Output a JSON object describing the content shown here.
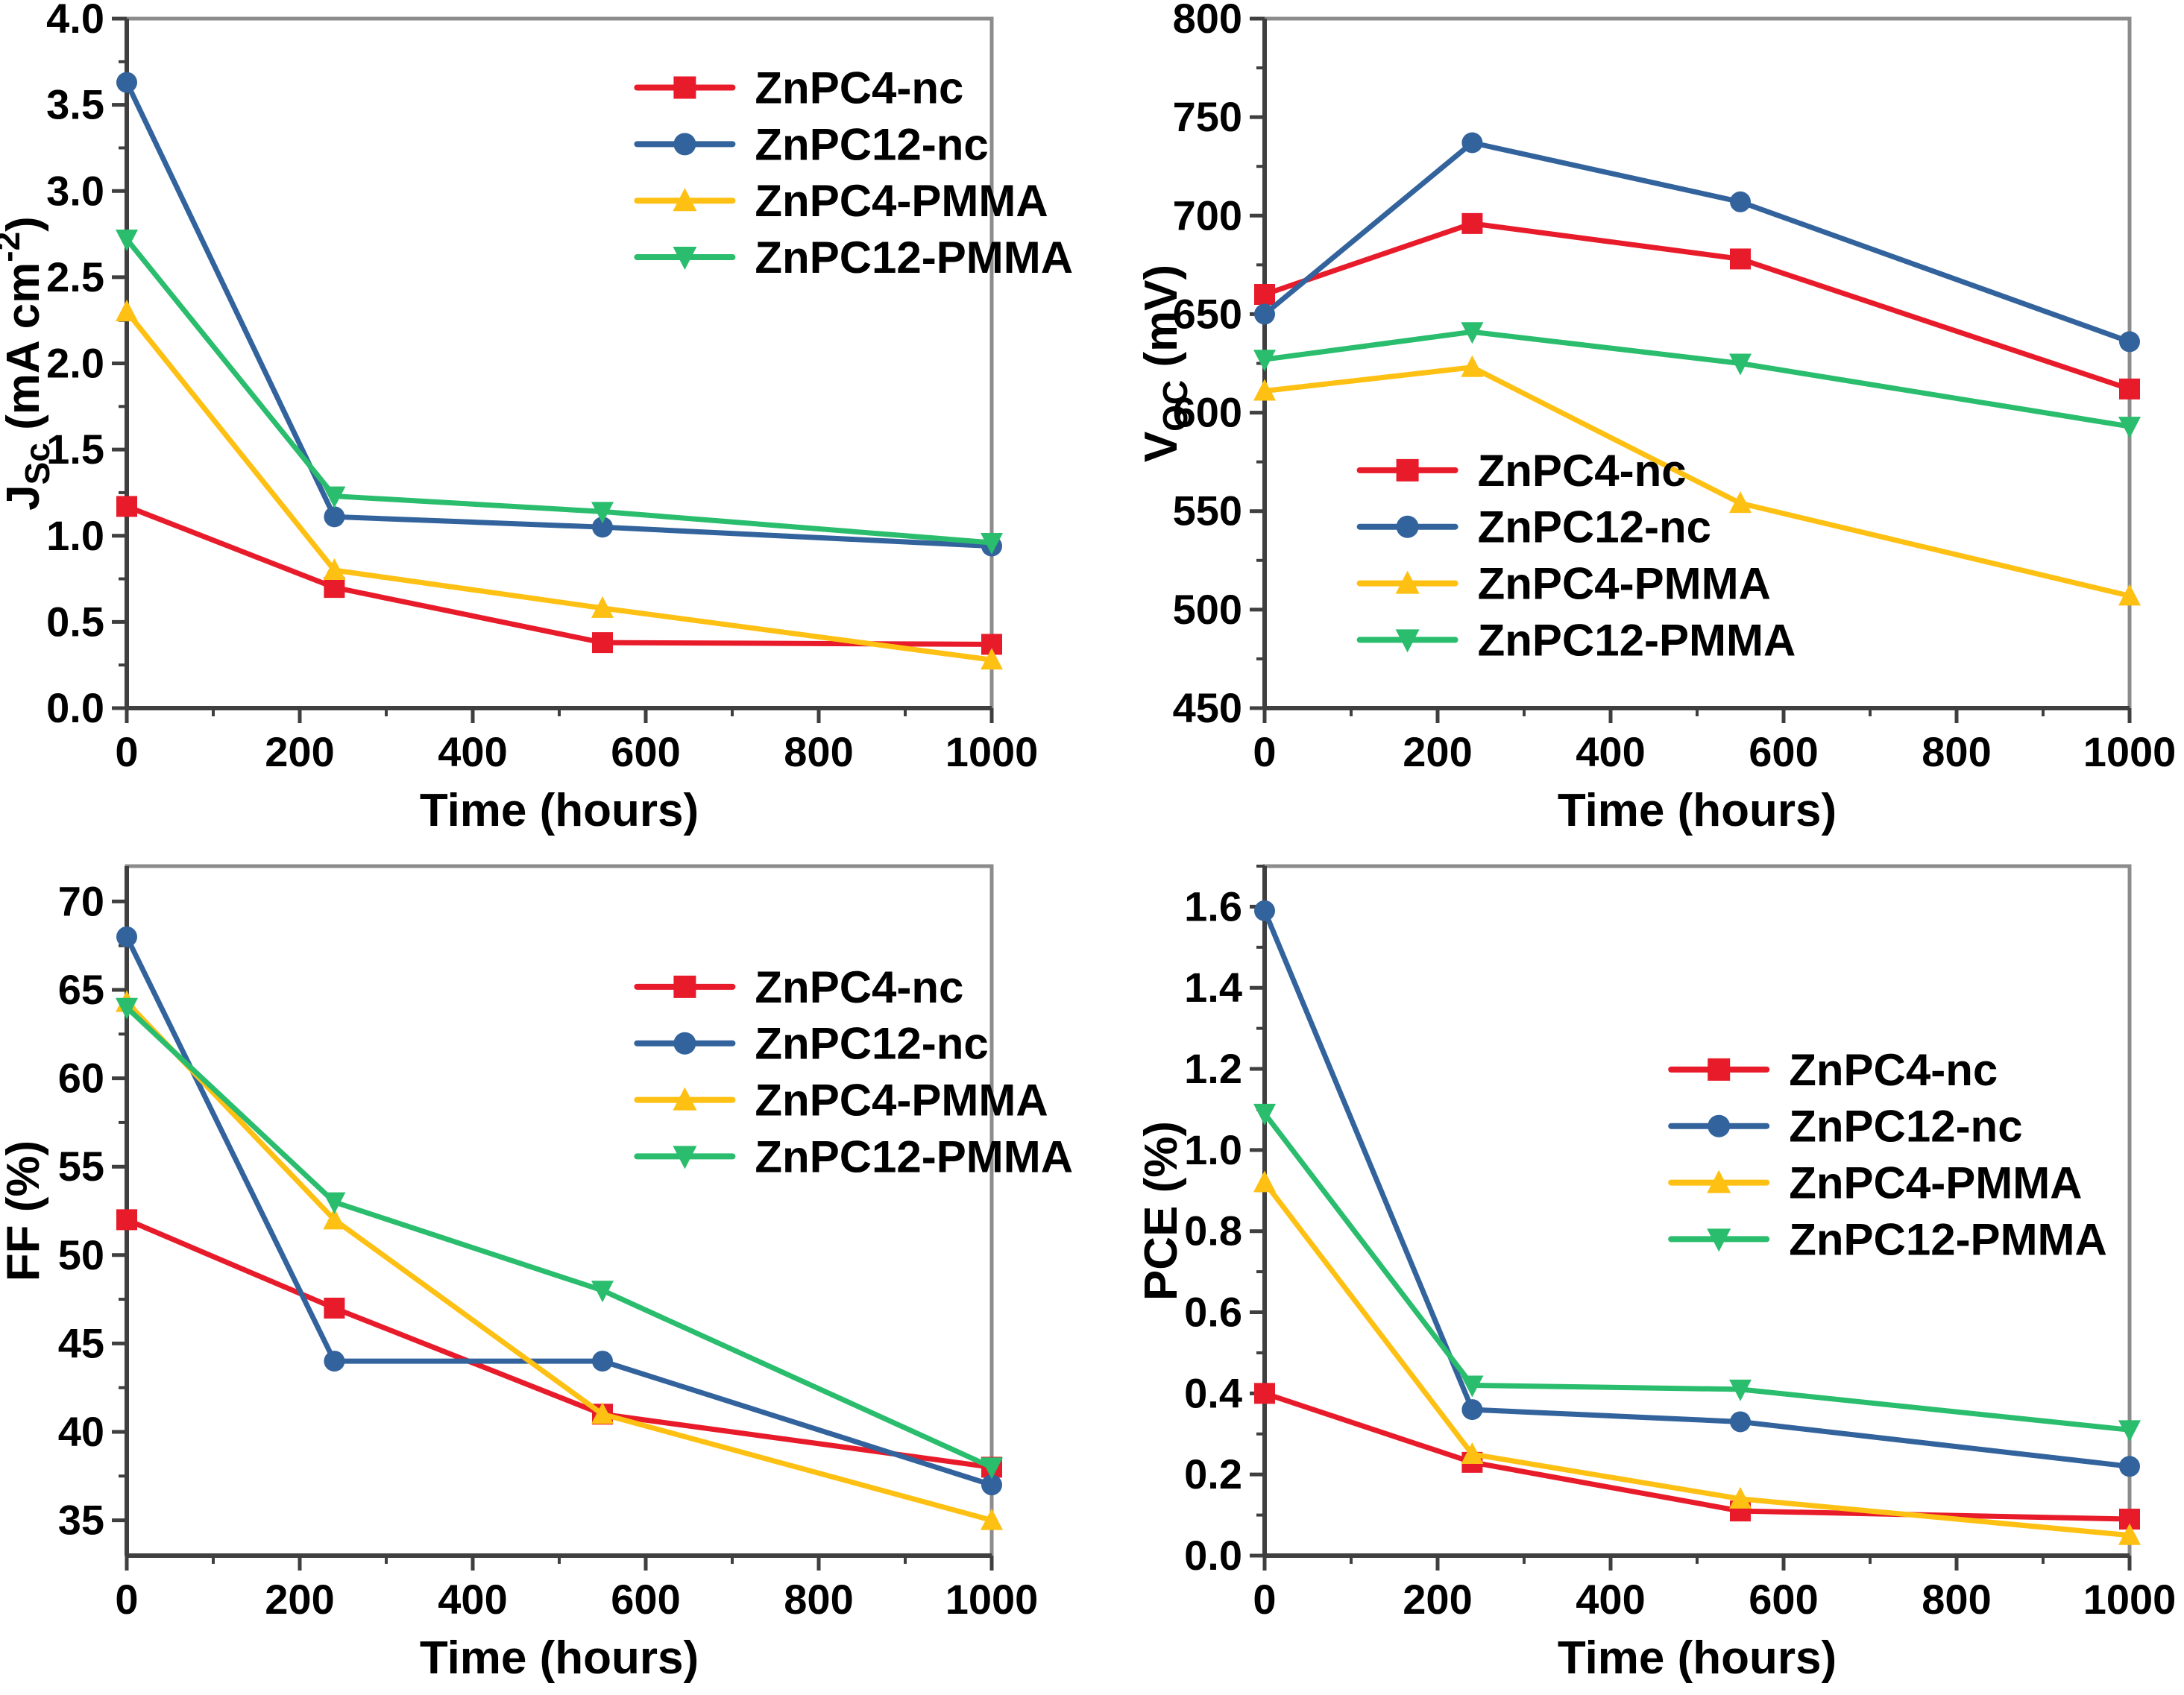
{
  "figure": {
    "background": "#ffffff"
  },
  "colors": {
    "red": "#e81b2b",
    "blue": "#33639c",
    "yellow": "#fdc013",
    "green": "#2abd6d",
    "frame": "#8c8c8c",
    "axis": "#3f3f3f",
    "text": "#000000"
  },
  "legend_labels": [
    "ZnPC4-nc",
    "ZnPC12-nc",
    "ZnPC4-PMMA",
    "ZnPC12-PMMA"
  ],
  "chart_data": [
    {
      "id": "jsc",
      "type": "line",
      "xlabel": "Time (hours)",
      "x": [
        0,
        240,
        550,
        1000
      ],
      "xlim": [
        0,
        1000
      ],
      "xticks": [
        {
          "v": 0,
          "label": "0"
        },
        {
          "v": 200,
          "label": "200"
        },
        {
          "v": 400,
          "label": "400"
        },
        {
          "v": 600,
          "label": "600"
        },
        {
          "v": 800,
          "label": "800"
        },
        {
          "v": 1000,
          "label": "1000"
        }
      ],
      "x_minor_step": 100,
      "ylim": [
        0,
        4
      ],
      "yticks": [
        {
          "v": 0,
          "label": "0.0"
        },
        {
          "v": 0.5,
          "label": "0.5"
        },
        {
          "v": 1,
          "label": "1.0"
        },
        {
          "v": 1.5,
          "label": "1.5"
        },
        {
          "v": 2,
          "label": "2.0"
        },
        {
          "v": 2.5,
          "label": "2.5"
        },
        {
          "v": 3,
          "label": "3.0"
        },
        {
          "v": 3.5,
          "label": "3.5"
        },
        {
          "v": 4,
          "label": "4.0"
        }
      ],
      "y_minor_step": 0.25,
      "ylabel_parts": [
        {
          "t": "J"
        },
        {
          "t": "Sc",
          "sub": true
        },
        {
          "t": " (mA cm"
        },
        {
          "t": "-2",
          "sup": true
        },
        {
          "t": ")"
        }
      ],
      "legend": {
        "x": 0.59,
        "y": 0.1,
        "dy": 0.082
      },
      "series": [
        {
          "name": "ZnPC4-nc",
          "color_key": "red",
          "marker": "square",
          "values": [
            1.17,
            0.7,
            0.38,
            0.37
          ]
        },
        {
          "name": "ZnPC12-nc",
          "color_key": "blue",
          "marker": "circle",
          "values": [
            3.63,
            1.11,
            1.05,
            0.94
          ]
        },
        {
          "name": "ZnPC4-PMMA",
          "color_key": "yellow",
          "marker": "tri-up",
          "values": [
            2.3,
            0.8,
            0.58,
            0.28
          ]
        },
        {
          "name": "ZnPC12-PMMA",
          "color_key": "green",
          "marker": "tri-down",
          "values": [
            2.72,
            1.23,
            1.14,
            0.96
          ]
        }
      ]
    },
    {
      "id": "voc",
      "type": "line",
      "xlabel": "Time (hours)",
      "x": [
        0,
        240,
        550,
        1000
      ],
      "xlim": [
        0,
        1000
      ],
      "xticks": [
        {
          "v": 0,
          "label": "0"
        },
        {
          "v": 200,
          "label": "200"
        },
        {
          "v": 400,
          "label": "400"
        },
        {
          "v": 600,
          "label": "600"
        },
        {
          "v": 800,
          "label": "800"
        },
        {
          "v": 1000,
          "label": "1000"
        }
      ],
      "x_minor_step": 100,
      "ylim": [
        450,
        800
      ],
      "yticks": [
        {
          "v": 450,
          "label": "450"
        },
        {
          "v": 500,
          "label": "500"
        },
        {
          "v": 550,
          "label": "550"
        },
        {
          "v": 600,
          "label": "600"
        },
        {
          "v": 650,
          "label": "650"
        },
        {
          "v": 700,
          "label": "700"
        },
        {
          "v": 750,
          "label": "750"
        },
        {
          "v": 800,
          "label": "800"
        }
      ],
      "y_minor_step": 25,
      "ylabel_parts": [
        {
          "t": "V"
        },
        {
          "t": "OC",
          "sub": true
        },
        {
          "t": " (mV)"
        }
      ],
      "legend": {
        "x": 0.11,
        "y": 0.655,
        "dy": 0.082
      },
      "series": [
        {
          "name": "ZnPC4-nc",
          "color_key": "red",
          "marker": "square",
          "values": [
            660,
            696,
            678,
            612
          ]
        },
        {
          "name": "ZnPC12-nc",
          "color_key": "blue",
          "marker": "circle",
          "values": [
            650,
            737,
            707,
            636
          ]
        },
        {
          "name": "ZnPC4-PMMA",
          "color_key": "yellow",
          "marker": "tri-up",
          "values": [
            611,
            623,
            554,
            507
          ]
        },
        {
          "name": "ZnPC12-PMMA",
          "color_key": "green",
          "marker": "tri-down",
          "values": [
            627,
            641,
            625,
            593
          ]
        }
      ]
    },
    {
      "id": "ff",
      "type": "line",
      "xlabel": "Time (hours)",
      "x": [
        0,
        240,
        550,
        1000
      ],
      "xlim": [
        0,
        1000
      ],
      "xticks": [
        {
          "v": 0,
          "label": "0"
        },
        {
          "v": 200,
          "label": "200"
        },
        {
          "v": 400,
          "label": "400"
        },
        {
          "v": 600,
          "label": "600"
        },
        {
          "v": 800,
          "label": "800"
        },
        {
          "v": 1000,
          "label": "1000"
        }
      ],
      "x_minor_step": 100,
      "ylim": [
        33,
        72
      ],
      "yticks": [
        {
          "v": 35,
          "label": "35"
        },
        {
          "v": 40,
          "label": "40"
        },
        {
          "v": 45,
          "label": "45"
        },
        {
          "v": 50,
          "label": "50"
        },
        {
          "v": 55,
          "label": "55"
        },
        {
          "v": 60,
          "label": "60"
        },
        {
          "v": 65,
          "label": "65"
        },
        {
          "v": 70,
          "label": "70"
        }
      ],
      "y_minor_step": 2.5,
      "ylabel_parts": [
        {
          "t": "FF (%)"
        }
      ],
      "legend": {
        "x": 0.59,
        "y": 0.175,
        "dy": 0.082
      },
      "series": [
        {
          "name": "ZnPC4-nc",
          "color_key": "red",
          "marker": "square",
          "values": [
            52.0,
            47.0,
            41.0,
            38.0
          ]
        },
        {
          "name": "ZnPC12-nc",
          "color_key": "blue",
          "marker": "circle",
          "values": [
            68.0,
            44.0,
            44.0,
            37.0
          ]
        },
        {
          "name": "ZnPC4-PMMA",
          "color_key": "yellow",
          "marker": "tri-up",
          "values": [
            64.3,
            52.0,
            41.0,
            35.0
          ]
        },
        {
          "name": "ZnPC12-PMMA",
          "color_key": "green",
          "marker": "tri-down",
          "values": [
            64.0,
            53.0,
            48.0,
            38.0
          ]
        }
      ]
    },
    {
      "id": "pce",
      "type": "line",
      "xlabel": "Time (hours)",
      "x": [
        0,
        240,
        550,
        1000
      ],
      "xlim": [
        0,
        1000
      ],
      "xticks": [
        {
          "v": 0,
          "label": "0"
        },
        {
          "v": 200,
          "label": "200"
        },
        {
          "v": 400,
          "label": "400"
        },
        {
          "v": 600,
          "label": "600"
        },
        {
          "v": 800,
          "label": "800"
        },
        {
          "v": 1000,
          "label": "1000"
        }
      ],
      "x_minor_step": 100,
      "ylim": [
        0,
        1.7
      ],
      "yticks": [
        {
          "v": 0,
          "label": "0.0"
        },
        {
          "v": 0.2,
          "label": "0.2"
        },
        {
          "v": 0.4,
          "label": "0.4"
        },
        {
          "v": 0.6,
          "label": "0.6"
        },
        {
          "v": 0.8,
          "label": "0.8"
        },
        {
          "v": 1,
          "label": "1.0"
        },
        {
          "v": 1.2,
          "label": "1.2"
        },
        {
          "v": 1.4,
          "label": "1.4"
        },
        {
          "v": 1.6,
          "label": "1.6"
        }
      ],
      "y_minor_step": 0.1,
      "ylabel_parts": [
        {
          "t": "PCE (%)"
        }
      ],
      "legend": {
        "x": 0.47,
        "y": 0.295,
        "dy": 0.082
      },
      "series": [
        {
          "name": "ZnPC4-nc",
          "color_key": "red",
          "marker": "square",
          "values": [
            0.4,
            0.23,
            0.11,
            0.09
          ]
        },
        {
          "name": "ZnPC12-nc",
          "color_key": "blue",
          "marker": "circle",
          "values": [
            1.59,
            0.36,
            0.33,
            0.22
          ]
        },
        {
          "name": "ZnPC4-PMMA",
          "color_key": "yellow",
          "marker": "tri-up",
          "values": [
            0.92,
            0.25,
            0.14,
            0.05
          ]
        },
        {
          "name": "ZnPC12-PMMA",
          "color_key": "green",
          "marker": "tri-down",
          "values": [
            1.09,
            0.42,
            0.41,
            0.31
          ]
        }
      ]
    }
  ]
}
